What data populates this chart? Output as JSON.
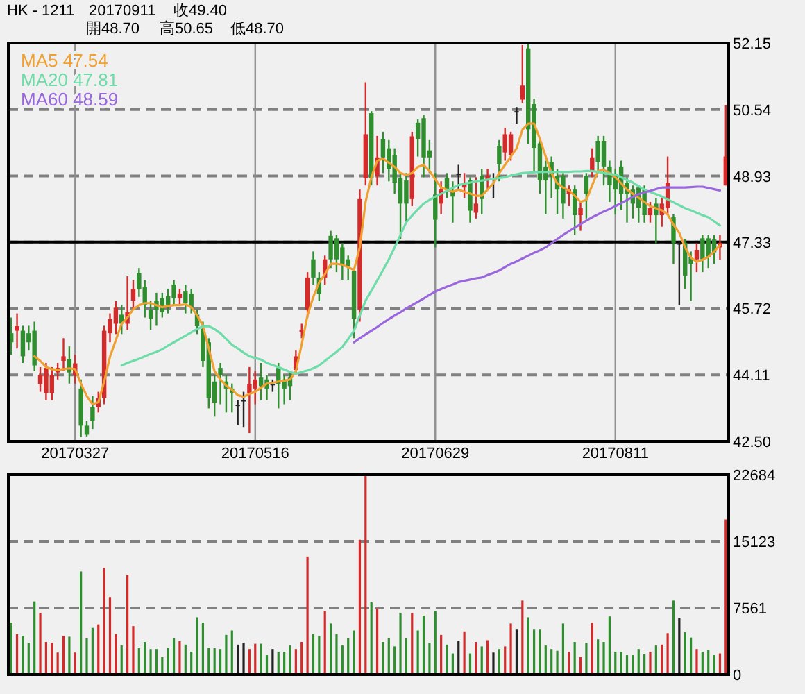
{
  "chart_data": [
    {
      "type": "candlestick",
      "title": "HK - 1211",
      "subtitle": "20170911",
      "annotations": [
        "收49.40",
        "開48.70",
        "高50.65",
        "低48.70"
      ],
      "categories": [
        null,
        null,
        null,
        null,
        null,
        null,
        null,
        null,
        null,
        null,
        null,
        "20170327",
        null,
        null,
        null,
        null,
        null,
        null,
        null,
        null,
        null,
        null,
        null,
        null,
        null,
        null,
        null,
        null,
        null,
        null,
        null,
        null,
        null,
        null,
        null,
        null,
        null,
        null,
        null,
        null,
        null,
        null,
        "20170516",
        null,
        null,
        null,
        null,
        null,
        null,
        null,
        null,
        null,
        null,
        null,
        null,
        null,
        null,
        null,
        null,
        null,
        null,
        null,
        null,
        null,
        null,
        null,
        null,
        null,
        null,
        null,
        null,
        null,
        null,
        "20170629",
        null,
        null,
        null,
        null,
        null,
        null,
        null,
        null,
        null,
        null,
        null,
        null,
        null,
        null,
        null,
        null,
        null,
        null,
        null,
        null,
        null,
        null,
        null,
        null,
        null,
        null,
        null,
        null,
        null,
        null,
        "20170811",
        null,
        null,
        null,
        null,
        null,
        null,
        null,
        null,
        null,
        null,
        null,
        null,
        null,
        null,
        null,
        null,
        null,
        null,
        null
      ],
      "ohlc": [
        [
          45.12,
          45.5,
          44.6,
          44.9
        ],
        [
          45.18,
          45.6,
          44.75,
          45.29
        ],
        [
          45.18,
          45.3,
          44.4,
          44.56
        ],
        [
          45.12,
          45.3,
          44.7,
          44.9
        ],
        [
          45.18,
          45.4,
          44.2,
          44.34
        ],
        [
          43.89,
          44.3,
          43.7,
          44.11
        ],
        [
          43.67,
          44.4,
          43.5,
          44.28
        ],
        [
          43.67,
          44.3,
          43.5,
          44.11
        ],
        [
          44.17,
          44.4,
          44.0,
          44.28
        ],
        [
          44.45,
          45.0,
          44.2,
          44.56
        ],
        [
          44.5,
          44.8,
          43.9,
          44.17
        ],
        [
          44.11,
          44.6,
          43.9,
          44.39
        ],
        [
          43.78,
          44.0,
          42.6,
          42.88
        ],
        [
          42.88,
          43.0,
          42.62,
          42.66
        ],
        [
          43.33,
          43.6,
          42.8,
          43.0
        ],
        [
          43.33,
          43.7,
          43.2,
          43.55
        ],
        [
          43.55,
          45.3,
          43.4,
          45.18
        ],
        [
          45.12,
          45.6,
          44.9,
          45.46
        ],
        [
          45.35,
          45.9,
          45.1,
          45.74
        ],
        [
          45.57,
          45.8,
          45.1,
          45.35
        ],
        [
          45.35,
          46.5,
          45.2,
          45.63
        ],
        [
          45.91,
          46.4,
          45.7,
          46.19
        ],
        [
          46.58,
          46.7,
          46.0,
          46.19
        ],
        [
          46.24,
          46.4,
          45.5,
          45.8
        ],
        [
          45.69,
          45.9,
          45.2,
          45.46
        ],
        [
          45.91,
          46.1,
          45.3,
          45.69
        ],
        [
          45.97,
          46.1,
          45.5,
          45.63
        ],
        [
          46.02,
          46.2,
          45.6,
          45.8
        ],
        [
          46.3,
          46.4,
          45.8,
          45.97
        ],
        [
          45.97,
          46.2,
          45.8,
          46.08
        ],
        [
          46.13,
          46.3,
          45.6,
          45.85
        ],
        [
          46.08,
          46.2,
          45.6,
          45.74
        ],
        [
          45.57,
          45.7,
          45.1,
          45.29
        ],
        [
          45.23,
          45.4,
          44.3,
          44.45
        ],
        [
          44.9,
          45.0,
          43.3,
          43.55
        ],
        [
          43.95,
          44.1,
          43.1,
          43.44
        ],
        [
          44.28,
          44.4,
          43.4,
          44.11
        ],
        [
          43.95,
          44.1,
          43.2,
          43.78
        ],
        [
          43.78,
          43.9,
          43.2,
          43.67
        ],
        [
          43.39,
          43.5,
          42.9,
          43.39
        ],
        [
          43.5,
          43.7,
          42.85,
          43.5
        ],
        [
          43.67,
          44.3,
          42.7,
          43.89
        ],
        [
          43.78,
          44.2,
          43.4,
          44.0
        ],
        [
          44.06,
          44.4,
          43.5,
          43.84
        ],
        [
          44.0,
          44.1,
          43.5,
          43.78
        ],
        [
          43.89,
          44.0,
          43.7,
          43.89
        ],
        [
          44.28,
          44.4,
          43.3,
          43.89
        ],
        [
          44.0,
          44.1,
          43.4,
          43.78
        ],
        [
          44.06,
          44.2,
          43.5,
          43.84
        ],
        [
          44.23,
          44.7,
          44.1,
          44.56
        ],
        [
          45.15,
          45.35,
          45.0,
          45.2
        ],
        [
          45.69,
          46.6,
          45.5,
          46.47
        ],
        [
          46.91,
          47.1,
          46.3,
          46.47
        ],
        [
          46.47,
          46.6,
          45.9,
          46.08
        ],
        [
          46.47,
          47.0,
          46.3,
          46.91
        ],
        [
          47.48,
          47.6,
          46.7,
          46.91
        ],
        [
          47.42,
          47.5,
          46.6,
          46.91
        ],
        [
          47.2,
          47.3,
          46.4,
          46.8
        ],
        [
          46.91,
          47.0,
          46.4,
          46.75
        ],
        [
          46.63,
          46.7,
          45.0,
          45.46
        ],
        [
          45.69,
          48.6,
          45.4,
          48.37
        ],
        [
          48.88,
          51.2,
          48.7,
          49.94
        ],
        [
          50.45,
          50.5,
          48.7,
          48.88
        ],
        [
          48.93,
          49.9,
          48.7,
          49.38
        ],
        [
          49.83,
          50.0,
          49.0,
          49.38
        ],
        [
          49.6,
          49.8,
          48.8,
          49.1
        ],
        [
          49.44,
          49.6,
          48.5,
          48.77
        ],
        [
          48.88,
          49.0,
          47.4,
          48.26
        ],
        [
          48.82,
          49.0,
          47.8,
          48.26
        ],
        [
          48.37,
          50.0,
          48.2,
          49.89
        ],
        [
          50.22,
          50.3,
          49.4,
          49.83
        ],
        [
          50.33,
          50.4,
          48.9,
          49.38
        ],
        [
          49.55,
          49.8,
          49.0,
          49.38
        ],
        [
          48.48,
          49.0,
          47.2,
          47.87
        ],
        [
          48.26,
          48.8,
          48.0,
          48.6
        ],
        [
          48.88,
          49.0,
          48.4,
          48.6
        ],
        [
          48.54,
          48.8,
          47.8,
          48.43
        ],
        [
          48.99,
          49.2,
          48.6,
          48.99
        ],
        [
          48.65,
          49.0,
          48.4,
          48.76
        ],
        [
          48.82,
          48.9,
          47.8,
          48.09
        ],
        [
          48.04,
          48.9,
          47.9,
          48.26
        ],
        [
          48.93,
          49.1,
          48.0,
          48.37
        ],
        [
          48.82,
          49.1,
          48.6,
          48.93
        ],
        [
          48.88,
          49.0,
          48.4,
          48.88
        ],
        [
          49.66,
          49.8,
          48.8,
          49.21
        ],
        [
          49.5,
          50.1,
          49.3,
          49.94
        ],
        [
          49.44,
          50.0,
          49.3,
          49.94
        ],
        [
          50.5,
          50.6,
          50.2,
          50.5
        ],
        [
          50.78,
          52.1,
          50.7,
          51.12
        ],
        [
          52.02,
          52.15,
          49.7,
          50.06
        ],
        [
          50.67,
          50.8,
          49.0,
          49.61
        ],
        [
          49.72,
          49.8,
          48.5,
          48.82
        ],
        [
          49.16,
          49.3,
          48.0,
          48.82
        ],
        [
          49.27,
          49.4,
          48.4,
          48.93
        ],
        [
          48.93,
          49.1,
          48.0,
          48.6
        ],
        [
          48.93,
          49.0,
          47.9,
          48.26
        ],
        [
          48.49,
          48.7,
          48.2,
          48.6
        ],
        [
          48.6,
          48.7,
          47.5,
          47.98
        ],
        [
          47.98,
          48.3,
          47.6,
          48.15
        ],
        [
          48.93,
          49.0,
          47.9,
          48.49
        ],
        [
          49.05,
          49.6,
          48.9,
          49.38
        ],
        [
          49.78,
          49.9,
          49.0,
          49.27
        ],
        [
          49.78,
          49.9,
          48.7,
          49.16
        ],
        [
          49.16,
          49.3,
          48.3,
          48.71
        ],
        [
          48.99,
          49.1,
          48.0,
          48.6
        ],
        [
          49.16,
          49.3,
          48.1,
          48.49
        ],
        [
          48.77,
          48.9,
          47.8,
          48.49
        ],
        [
          48.6,
          48.7,
          47.9,
          48.26
        ],
        [
          48.65,
          48.7,
          47.8,
          48.15
        ],
        [
          48.6,
          48.7,
          47.8,
          47.98
        ],
        [
          47.98,
          48.3,
          47.8,
          48.15
        ],
        [
          48.26,
          48.4,
          47.3,
          47.98
        ],
        [
          47.98,
          48.4,
          47.7,
          48.26
        ],
        [
          48.15,
          49.4,
          48.0,
          48.77
        ],
        [
          47.93,
          48.0,
          46.8,
          47.31
        ],
        [
          47.3,
          47.35,
          45.8,
          47.3
        ],
        [
          47.31,
          47.4,
          46.2,
          46.52
        ],
        [
          46.97,
          47.1,
          45.9,
          46.8
        ],
        [
          46.91,
          47.3,
          46.6,
          47.14
        ],
        [
          47.42,
          47.5,
          46.6,
          46.91
        ],
        [
          47.42,
          47.5,
          46.7,
          46.97
        ],
        [
          47.39,
          47.5,
          46.8,
          47.08
        ],
        [
          47.2,
          47.5,
          46.9,
          47.31
        ],
        [
          48.7,
          50.65,
          48.7,
          49.4
        ]
      ],
      "colors": [
        "#2f8f2f",
        "#d42a2a",
        "#2f8f2f",
        "#2f8f2f",
        "#2f8f2f",
        "#d42a2a",
        "#d42a2a",
        "#d42a2a",
        "#d42a2a",
        "#d42a2a",
        "#2f8f2f",
        "#d42a2a",
        "#2f8f2f",
        "#2f8f2f",
        "#2f8f2f",
        "#d42a2a",
        "#d42a2a",
        "#d42a2a",
        "#d42a2a",
        "#2f8f2f",
        "#d42a2a",
        "#d42a2a",
        "#2f8f2f",
        "#2f8f2f",
        "#2f8f2f",
        "#2f8f2f",
        "#2f8f2f",
        "#2f8f2f",
        "#2f8f2f",
        "#d42a2a",
        "#2f8f2f",
        "#2f8f2f",
        "#2f8f2f",
        "#2f8f2f",
        "#2f8f2f",
        "#2f8f2f",
        "#2f8f2f",
        "#2f8f2f",
        "#2f8f2f",
        "#222222",
        "#222222",
        "#d42a2a",
        "#d42a2a",
        "#2f8f2f",
        "#2f8f2f",
        "#222222",
        "#2f8f2f",
        "#2f8f2f",
        "#2f8f2f",
        "#d42a2a",
        "#d42a2a",
        "#d42a2a",
        "#2f8f2f",
        "#2f8f2f",
        "#d42a2a",
        "#2f8f2f",
        "#2f8f2f",
        "#2f8f2f",
        "#2f8f2f",
        "#2f8f2f",
        "#d42a2a",
        "#d42a2a",
        "#2f8f2f",
        "#d42a2a",
        "#2f8f2f",
        "#2f8f2f",
        "#2f8f2f",
        "#2f8f2f",
        "#2f8f2f",
        "#d42a2a",
        "#2f8f2f",
        "#2f8f2f",
        "#2f8f2f",
        "#2f8f2f",
        "#d42a2a",
        "#2f8f2f",
        "#2f8f2f",
        "#222222",
        "#d42a2a",
        "#2f8f2f",
        "#d42a2a",
        "#2f8f2f",
        "#d42a2a",
        "#222222",
        "#2f8f2f",
        "#d42a2a",
        "#d42a2a",
        "#222222",
        "#d42a2a",
        "#2f8f2f",
        "#2f8f2f",
        "#2f8f2f",
        "#2f8f2f",
        "#2f8f2f",
        "#2f8f2f",
        "#2f8f2f",
        "#d42a2a",
        "#2f8f2f",
        "#d42a2a",
        "#2f8f2f",
        "#d42a2a",
        "#2f8f2f",
        "#2f8f2f",
        "#2f8f2f",
        "#2f8f2f",
        "#2f8f2f",
        "#2f8f2f",
        "#2f8f2f",
        "#2f8f2f",
        "#2f8f2f",
        "#d42a2a",
        "#2f8f2f",
        "#d42a2a",
        "#d42a2a",
        "#2f8f2f",
        "#222222",
        "#2f8f2f",
        "#2f8f2f",
        "#d42a2a",
        "#2f8f2f",
        "#2f8f2f",
        "#2f8f2f",
        "#d42a2a",
        "#d42a2a"
      ],
      "series": [
        {
          "type": "line",
          "name": "MA5 47.54",
          "color": "#f0a030",
          "values": [
            null,
            null,
            null,
            null,
            44.56,
            44.45,
            44.3,
            44.25,
            44.23,
            44.25,
            44.27,
            44.25,
            43.9,
            43.6,
            43.4,
            43.45,
            43.95,
            44.55,
            44.95,
            45.35,
            45.5,
            45.7,
            45.8,
            45.85,
            45.85,
            45.8,
            45.75,
            45.78,
            45.8,
            45.8,
            45.82,
            45.75,
            45.55,
            45.3,
            44.75,
            44.2,
            44.0,
            43.85,
            43.75,
            43.62,
            43.58,
            43.65,
            43.7,
            43.8,
            43.9,
            43.92,
            43.95,
            43.97,
            44.0,
            44.2,
            44.85,
            45.55,
            46.0,
            46.35,
            46.55,
            46.8,
            46.8,
            46.78,
            46.72,
            46.65,
            47.2,
            48.3,
            48.9,
            49.3,
            49.35,
            49.25,
            49.15,
            49.0,
            48.95,
            49.0,
            49.15,
            49.2,
            49.05,
            48.85,
            48.65,
            48.6,
            48.55,
            48.6,
            48.55,
            48.5,
            48.45,
            48.45,
            48.6,
            48.75,
            49.0,
            49.2,
            49.4,
            49.6,
            50.05,
            50.2,
            50.2,
            49.83,
            49.4,
            49.0,
            48.75,
            48.65,
            48.58,
            48.45,
            48.3,
            48.35,
            48.7,
            49.05,
            49.08,
            49.0,
            48.9,
            48.75,
            48.6,
            48.5,
            48.4,
            48.3,
            48.2,
            48.15,
            48.1,
            48.0,
            47.75,
            47.55,
            47.2,
            46.95,
            46.85,
            46.9,
            46.97,
            47.1,
            47.25,
            null
          ]
        },
        {
          "type": "line",
          "name": "MA20 47.81",
          "color": "#6ddca8",
          "values": [
            null,
            null,
            null,
            null,
            null,
            null,
            null,
            null,
            null,
            null,
            null,
            null,
            null,
            null,
            null,
            null,
            null,
            null,
            null,
            44.34,
            44.4,
            44.45,
            44.5,
            44.56,
            44.62,
            44.67,
            44.73,
            44.82,
            44.9,
            44.98,
            45.06,
            45.14,
            45.22,
            45.29,
            45.29,
            45.22,
            45.12,
            44.98,
            44.84,
            44.75,
            44.65,
            44.56,
            44.52,
            44.48,
            44.4,
            44.35,
            44.3,
            44.24,
            44.18,
            44.14,
            44.18,
            44.22,
            44.27,
            44.34,
            44.45,
            44.56,
            44.67,
            44.79,
            44.98,
            45.18,
            45.55,
            45.91,
            46.15,
            46.4,
            46.65,
            46.91,
            47.2,
            47.5,
            47.81,
            47.97,
            48.12,
            48.26,
            48.35,
            48.43,
            48.5,
            48.57,
            48.64,
            48.71,
            48.74,
            48.77,
            48.8,
            48.82,
            48.84,
            48.86,
            48.88,
            48.9,
            48.94,
            48.97,
            49.0,
            49.01,
            49.02,
            49.03,
            49.03,
            49.03,
            49.03,
            49.03,
            49.03,
            49.04,
            49.04,
            49.05,
            49.05,
            49.03,
            49.0,
            48.98,
            48.96,
            48.9,
            48.83,
            48.77,
            48.68,
            48.6,
            48.54,
            48.49,
            48.43,
            48.36,
            48.29,
            48.22,
            48.15,
            48.1,
            48.04,
            47.98,
            47.93,
            47.83,
            47.73,
            null
          ]
        },
        {
          "type": "line",
          "name": "MA60 48.59",
          "color": "#9966dd",
          "values": [
            null,
            null,
            null,
            null,
            null,
            null,
            null,
            null,
            null,
            null,
            null,
            null,
            null,
            null,
            null,
            null,
            null,
            null,
            null,
            null,
            null,
            null,
            null,
            null,
            null,
            null,
            null,
            null,
            null,
            null,
            null,
            null,
            null,
            null,
            null,
            null,
            null,
            null,
            null,
            null,
            null,
            null,
            null,
            null,
            null,
            null,
            null,
            null,
            null,
            null,
            null,
            null,
            null,
            null,
            null,
            null,
            null,
            null,
            null,
            44.9,
            45.0,
            45.09,
            45.18,
            45.27,
            45.37,
            45.46,
            45.55,
            45.63,
            45.72,
            45.8,
            45.88,
            45.96,
            46.05,
            46.13,
            46.19,
            46.25,
            46.3,
            46.36,
            46.39,
            46.42,
            46.45,
            46.47,
            46.53,
            46.58,
            46.64,
            46.72,
            46.8,
            46.86,
            46.93,
            47.0,
            47.07,
            47.13,
            47.2,
            47.3,
            47.4,
            47.5,
            47.59,
            47.68,
            47.76,
            47.85,
            47.93,
            48.0,
            48.07,
            48.13,
            48.2,
            48.27,
            48.35,
            48.42,
            48.49,
            48.53,
            48.57,
            48.61,
            48.65,
            48.65,
            48.65,
            48.65,
            48.65,
            48.66,
            48.67,
            48.67,
            48.64,
            48.61,
            48.58,
            null
          ]
        }
      ],
      "ylim": [
        42.5,
        52.15
      ],
      "yticks": [
        52.15,
        50.54,
        48.93,
        47.33,
        45.72,
        44.11,
        {
          "value": 42.5,
          "label": "42.50"
        }
      ],
      "ref_lines": [
        {
          "axis": "y",
          "value": 47.33,
          "color": "#000000",
          "line_style": "solid"
        }
      ],
      "grid": true,
      "legend": "top left"
    },
    {
      "type": "bar",
      "categories": [
        null,
        null,
        null,
        null,
        null,
        null,
        null,
        null,
        null,
        null,
        null,
        null,
        null,
        null,
        null,
        null,
        null,
        null,
        null,
        null,
        null,
        null,
        null,
        null,
        null,
        null,
        null,
        null,
        null,
        null,
        null,
        null,
        null,
        null,
        null,
        null,
        null,
        null,
        null,
        null,
        null,
        null,
        null,
        null,
        null,
        null,
        null,
        null,
        null,
        null,
        null,
        null,
        null,
        null,
        null,
        null,
        null,
        null,
        null,
        null,
        null,
        null,
        null,
        null,
        null,
        null,
        null,
        null,
        null,
        null,
        null,
        null,
        null,
        null,
        null,
        null,
        null,
        null,
        null,
        null,
        null,
        null,
        null,
        null,
        null,
        null,
        null,
        null,
        null,
        null,
        null,
        null,
        null,
        null,
        null,
        null,
        null,
        null,
        null,
        null,
        null,
        null,
        null,
        null,
        null,
        null,
        null,
        null,
        null,
        null,
        null,
        null,
        null,
        null,
        null,
        null,
        null,
        null,
        null,
        null,
        null,
        null,
        null,
        null
      ],
      "values": [
        5900,
        4600,
        4400,
        3600,
        8300,
        7000,
        3700,
        3600,
        2500,
        4400,
        4300,
        2500,
        11700,
        4100,
        5300,
        5700,
        12100,
        8800,
        4600,
        3300,
        11300,
        5500,
        3000,
        3700,
        2900,
        2900,
        2000,
        3000,
        4100,
        3800,
        3400,
        2600,
        6500,
        5900,
        3000,
        3000,
        2900,
        4500,
        5000,
        3400,
        3600,
        2900,
        3500,
        3500,
        2200,
        2900,
        2600,
        2600,
        3300,
        2900,
        3700,
        13400,
        4600,
        4400,
        7200,
        5800,
        4600,
        3300,
        4100,
        5000,
        15300,
        22684,
        8200,
        7500,
        3700,
        4100,
        3200,
        7000,
        4100,
        7000,
        5000,
        6700,
        3600,
        7200,
        4500,
        3400,
        2400,
        3800,
        4900,
        2400,
        3700,
        3200,
        3900,
        2500,
        2900,
        3200,
        5800,
        5100,
        8400,
        6500,
        5100,
        5100,
        3300,
        2900,
        2700,
        5800,
        2600,
        3700,
        2000,
        3600,
        5900,
        4000,
        3700,
        6600,
        2600,
        2600,
        2200,
        2200,
        2900,
        2300,
        2600,
        3300,
        3400,
        4700,
        8400,
        6400,
        4800,
        4200,
        2900,
        2600,
        2800,
        2200,
        2400,
        17600
      ],
      "colors": [
        "#2f8f2f",
        "#d42a2a",
        "#2f8f2f",
        "#2f8f2f",
        "#2f8f2f",
        "#d42a2a",
        "#d42a2a",
        "#d42a2a",
        "#d42a2a",
        "#d42a2a",
        "#2f8f2f",
        "#d42a2a",
        "#2f8f2f",
        "#2f8f2f",
        "#2f8f2f",
        "#d42a2a",
        "#d42a2a",
        "#d42a2a",
        "#d42a2a",
        "#2f8f2f",
        "#d42a2a",
        "#d42a2a",
        "#2f8f2f",
        "#2f8f2f",
        "#2f8f2f",
        "#2f8f2f",
        "#2f8f2f",
        "#2f8f2f",
        "#2f8f2f",
        "#d42a2a",
        "#2f8f2f",
        "#2f8f2f",
        "#2f8f2f",
        "#2f8f2f",
        "#2f8f2f",
        "#2f8f2f",
        "#2f8f2f",
        "#2f8f2f",
        "#2f8f2f",
        "#222222",
        "#222222",
        "#d42a2a",
        "#d42a2a",
        "#2f8f2f",
        "#2f8f2f",
        "#222222",
        "#2f8f2f",
        "#2f8f2f",
        "#2f8f2f",
        "#d42a2a",
        "#d42a2a",
        "#d42a2a",
        "#2f8f2f",
        "#2f8f2f",
        "#d42a2a",
        "#2f8f2f",
        "#2f8f2f",
        "#2f8f2f",
        "#2f8f2f",
        "#2f8f2f",
        "#d42a2a",
        "#d42a2a",
        "#2f8f2f",
        "#d42a2a",
        "#2f8f2f",
        "#2f8f2f",
        "#2f8f2f",
        "#2f8f2f",
        "#2f8f2f",
        "#d42a2a",
        "#2f8f2f",
        "#2f8f2f",
        "#2f8f2f",
        "#2f8f2f",
        "#d42a2a",
        "#2f8f2f",
        "#2f8f2f",
        "#222222",
        "#d42a2a",
        "#2f8f2f",
        "#d42a2a",
        "#2f8f2f",
        "#d42a2a",
        "#222222",
        "#2f8f2f",
        "#d42a2a",
        "#d42a2a",
        "#222222",
        "#d42a2a",
        "#2f8f2f",
        "#2f8f2f",
        "#2f8f2f",
        "#2f8f2f",
        "#2f8f2f",
        "#2f8f2f",
        "#2f8f2f",
        "#d42a2a",
        "#2f8f2f",
        "#d42a2a",
        "#2f8f2f",
        "#d42a2a",
        "#2f8f2f",
        "#2f8f2f",
        "#2f8f2f",
        "#2f8f2f",
        "#2f8f2f",
        "#2f8f2f",
        "#2f8f2f",
        "#2f8f2f",
        "#2f8f2f",
        "#d42a2a",
        "#2f8f2f",
        "#d42a2a",
        "#d42a2a",
        "#2f8f2f",
        "#222222",
        "#2f8f2f",
        "#2f8f2f",
        "#d42a2a",
        "#2f8f2f",
        "#2f8f2f",
        "#2f8f2f",
        "#d42a2a",
        "#d42a2a"
      ],
      "ylim": [
        0,
        22684
      ],
      "yticks": [
        22684,
        15123,
        7561,
        0
      ],
      "grid": "y",
      "tick_labels": "y"
    }
  ]
}
